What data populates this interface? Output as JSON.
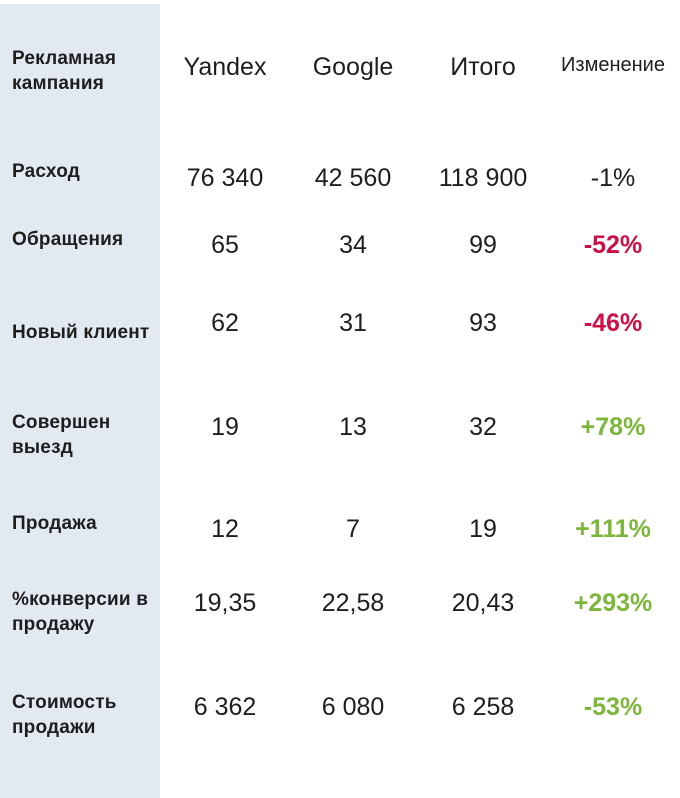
{
  "header": {
    "label": "Рекламная кампания",
    "yandex": "Yandex",
    "google": "Google",
    "total": "Итого",
    "change": "Изменение"
  },
  "rows": [
    {
      "label": "Расход",
      "yandex": "76 340",
      "google": "42 560",
      "total": "118 900",
      "change": "-1%"
    },
    {
      "label": "Обращения",
      "yandex": "65",
      "google": "34",
      "total": "99",
      "change": "-52%"
    },
    {
      "label": "Новый клиент",
      "yandex": "62",
      "google": "31",
      "total": "93",
      "change": "-46%"
    },
    {
      "label": "Совершен выезд",
      "yandex": "19",
      "google": "13",
      "total": "32",
      "change": "+78%"
    },
    {
      "label": "Продажа",
      "yandex": "12",
      "google": "7",
      "total": "19",
      "change": "+111%"
    },
    {
      "label": "%конверсии в продажу",
      "yandex": "19,35",
      "google": "22,58",
      "total": "20,43",
      "change": "+293%"
    },
    {
      "label": "Стоимость продажи",
      "yandex": "6 362",
      "google": "6 080",
      "total": "6 258",
      "change": "-53%"
    }
  ],
  "colors": {
    "label_column_bg": "#e2e9f0",
    "negative": "#cc0f45",
    "positive": "#7cb63a"
  }
}
